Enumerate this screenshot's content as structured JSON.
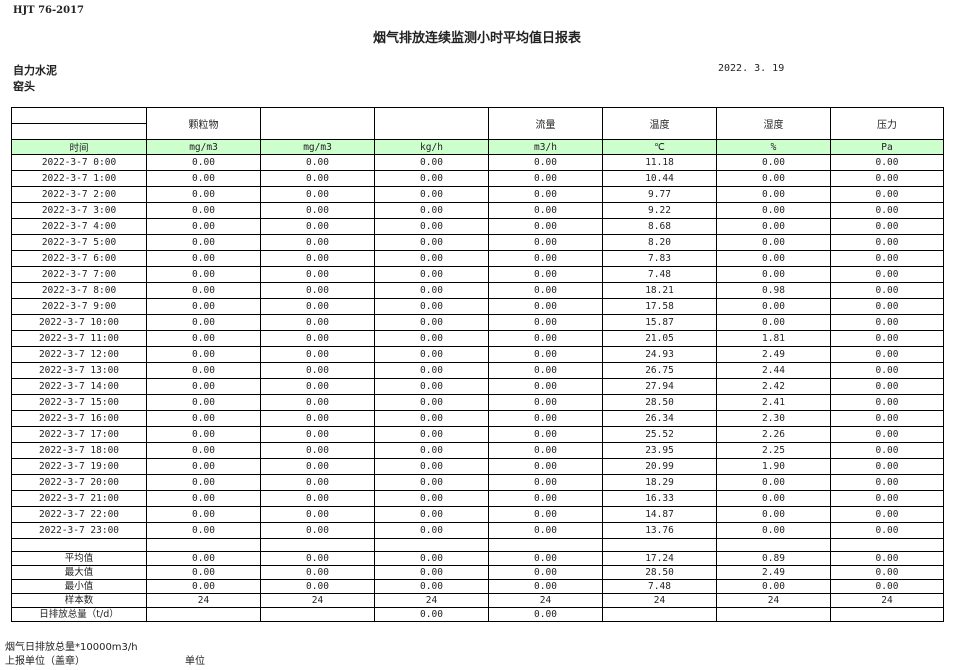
{
  "header": {
    "standard": "HJT  76-2017",
    "title": "烟气排放连续监测小时平均值日报表",
    "company": "自力水泥",
    "site": "窑头",
    "date": "2022. 3. 19"
  },
  "table": {
    "columns": [
      "",
      "颗粒物",
      "",
      "",
      "流量",
      "温度",
      "湿度",
      "压力"
    ],
    "time_label": "时间",
    "units": [
      "mg/m3",
      "mg/m3",
      "kg/h",
      "m3/h",
      "℃",
      "%",
      "Pa"
    ],
    "rows": [
      [
        "2022-3-7 0:00",
        "0.00",
        "0.00",
        "0.00",
        "0.00",
        "11.18",
        "0.00",
        "0.00"
      ],
      [
        "2022-3-7 1:00",
        "0.00",
        "0.00",
        "0.00",
        "0.00",
        "10.44",
        "0.00",
        "0.00"
      ],
      [
        "2022-3-7 2:00",
        "0.00",
        "0.00",
        "0.00",
        "0.00",
        "9.77",
        "0.00",
        "0.00"
      ],
      [
        "2022-3-7 3:00",
        "0.00",
        "0.00",
        "0.00",
        "0.00",
        "9.22",
        "0.00",
        "0.00"
      ],
      [
        "2022-3-7 4:00",
        "0.00",
        "0.00",
        "0.00",
        "0.00",
        "8.68",
        "0.00",
        "0.00"
      ],
      [
        "2022-3-7 5:00",
        "0.00",
        "0.00",
        "0.00",
        "0.00",
        "8.20",
        "0.00",
        "0.00"
      ],
      [
        "2022-3-7 6:00",
        "0.00",
        "0.00",
        "0.00",
        "0.00",
        "7.83",
        "0.00",
        "0.00"
      ],
      [
        "2022-3-7 7:00",
        "0.00",
        "0.00",
        "0.00",
        "0.00",
        "7.48",
        "0.00",
        "0.00"
      ],
      [
        "2022-3-7 8:00",
        "0.00",
        "0.00",
        "0.00",
        "0.00",
        "18.21",
        "0.98",
        "0.00"
      ],
      [
        "2022-3-7 9:00",
        "0.00",
        "0.00",
        "0.00",
        "0.00",
        "17.58",
        "0.00",
        "0.00"
      ],
      [
        "2022-3-7 10:00",
        "0.00",
        "0.00",
        "0.00",
        "0.00",
        "15.87",
        "0.00",
        "0.00"
      ],
      [
        "2022-3-7 11:00",
        "0.00",
        "0.00",
        "0.00",
        "0.00",
        "21.05",
        "1.81",
        "0.00"
      ],
      [
        "2022-3-7 12:00",
        "0.00",
        "0.00",
        "0.00",
        "0.00",
        "24.93",
        "2.49",
        "0.00"
      ],
      [
        "2022-3-7 13:00",
        "0.00",
        "0.00",
        "0.00",
        "0.00",
        "26.75",
        "2.44",
        "0.00"
      ],
      [
        "2022-3-7 14:00",
        "0.00",
        "0.00",
        "0.00",
        "0.00",
        "27.94",
        "2.42",
        "0.00"
      ],
      [
        "2022-3-7 15:00",
        "0.00",
        "0.00",
        "0.00",
        "0.00",
        "28.50",
        "2.41",
        "0.00"
      ],
      [
        "2022-3-7 16:00",
        "0.00",
        "0.00",
        "0.00",
        "0.00",
        "26.34",
        "2.30",
        "0.00"
      ],
      [
        "2022-3-7 17:00",
        "0.00",
        "0.00",
        "0.00",
        "0.00",
        "25.52",
        "2.26",
        "0.00"
      ],
      [
        "2022-3-7 18:00",
        "0.00",
        "0.00",
        "0.00",
        "0.00",
        "23.95",
        "2.25",
        "0.00"
      ],
      [
        "2022-3-7 19:00",
        "0.00",
        "0.00",
        "0.00",
        "0.00",
        "20.99",
        "1.90",
        "0.00"
      ],
      [
        "2022-3-7 20:00",
        "0.00",
        "0.00",
        "0.00",
        "0.00",
        "18.29",
        "0.00",
        "0.00"
      ],
      [
        "2022-3-7 21:00",
        "0.00",
        "0.00",
        "0.00",
        "0.00",
        "16.33",
        "0.00",
        "0.00"
      ],
      [
        "2022-3-7 22:00",
        "0.00",
        "0.00",
        "0.00",
        "0.00",
        "14.87",
        "0.00",
        "0.00"
      ],
      [
        "2022-3-7 23:00",
        "0.00",
        "0.00",
        "0.00",
        "0.00",
        "13.76",
        "0.00",
        "0.00"
      ]
    ],
    "stats": [
      [
        "平均值",
        "0.00",
        "0.00",
        "0.00",
        "0.00",
        "17.24",
        "0.89",
        "0.00"
      ],
      [
        "最大值",
        "0.00",
        "0.00",
        "0.00",
        "0.00",
        "28.50",
        "2.49",
        "0.00"
      ],
      [
        "最小值",
        "0.00",
        "0.00",
        "0.00",
        "0.00",
        "7.48",
        "0.00",
        "0.00"
      ],
      [
        "样本数",
        "24",
        "24",
        "24",
        "24",
        "24",
        "24",
        "24"
      ],
      [
        "日排放总量（t/d）",
        "",
        "",
        "0.00",
        "0.00",
        "",
        "",
        ""
      ]
    ]
  },
  "footer": {
    "flue_total": "烟气日排放总量*10000m3/h",
    "reporter": "上报单位（盖章）",
    "unit": "单位"
  }
}
